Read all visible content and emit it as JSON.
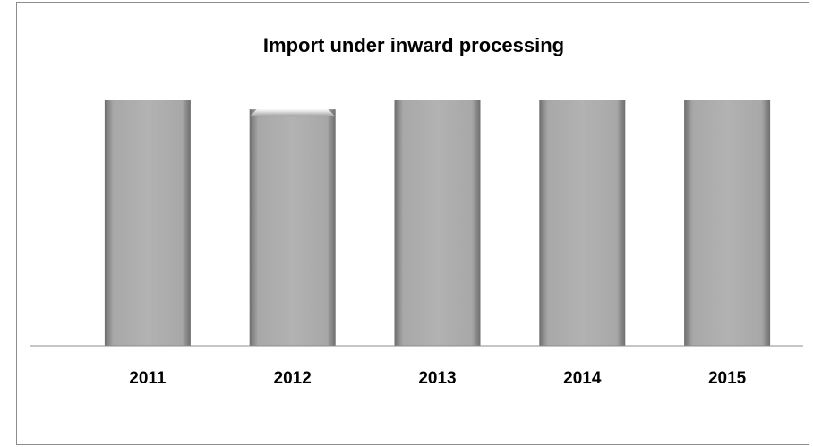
{
  "chart_data": {
    "type": "bar",
    "title": "Import under inward processing",
    "categories": [
      "2011",
      "2012",
      "2013",
      "2014",
      "2015"
    ],
    "values": [
      100,
      96.3,
      100,
      100,
      100
    ],
    "ylim": [
      0,
      100
    ],
    "xlabel": "",
    "ylabel": "",
    "grid": false,
    "legend": "none",
    "colors": {
      "bar": "#a6a6a6",
      "axis": "#8c8c8c"
    }
  }
}
